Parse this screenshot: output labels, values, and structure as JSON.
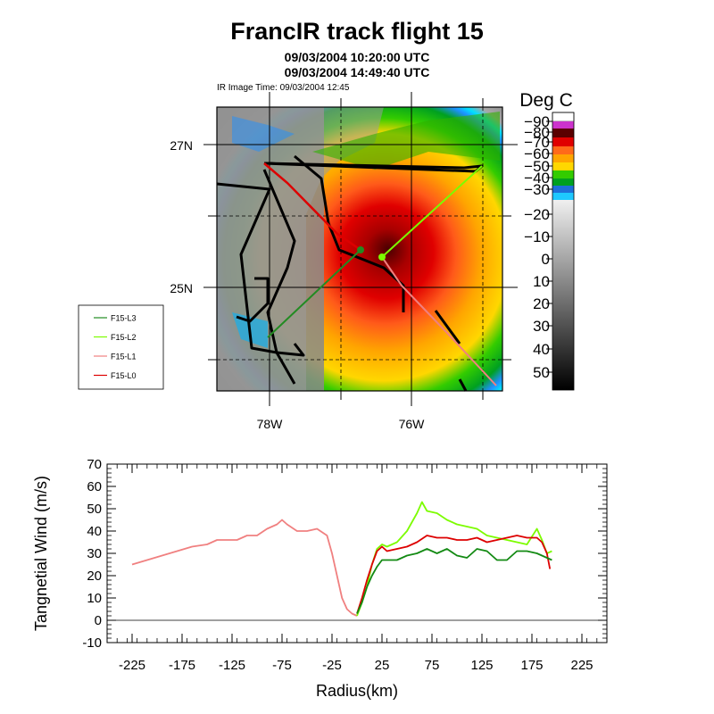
{
  "title": "FrancIR track flight 15",
  "time_start": "09/03/2004 10:20:00 UTC",
  "time_end": "09/03/2004 14:49:40 UTC",
  "ir_image_time": "IR Image Time: 09/03/2004 12:45",
  "map": {
    "lat_labels": [
      "27N",
      "25N"
    ],
    "lon_labels": [
      "78W",
      "76W"
    ]
  },
  "colorbar": {
    "title": "Deg C",
    "labels": [
      "-90",
      "-80",
      "-70",
      "-60",
      "-50",
      "-40",
      "-30",
      "-20",
      "-10",
      "0",
      "10",
      "20",
      "30",
      "40",
      "50"
    ]
  },
  "legend": {
    "entries": [
      {
        "label": "F15-L3",
        "color": "#228b22"
      },
      {
        "label": "F15-L2",
        "color": "#7cfc00"
      },
      {
        "label": "F15-L1",
        "color": "#f08080"
      },
      {
        "label": "F15-L0",
        "color": "#dd0000"
      }
    ]
  },
  "chart_data": {
    "type": "line",
    "xlabel": "Radius(km)",
    "ylabel": "Tangnetial Wind (m/s)",
    "xlim": [
      -250,
      250
    ],
    "ylim": [
      -10,
      70
    ],
    "xticks": [
      -225,
      -175,
      -125,
      -75,
      -25,
      25,
      75,
      125,
      175,
      225
    ],
    "yticks": [
      -10,
      0,
      10,
      20,
      30,
      40,
      50,
      60,
      70
    ],
    "series": [
      {
        "name": "F15-L1",
        "color": "#f08080",
        "x": [
          -225,
          -210,
          -195,
          -180,
          -165,
          -150,
          -140,
          -130,
          -120,
          -110,
          -100,
          -90,
          -80,
          -75,
          -70,
          -60,
          -50,
          -40,
          -30,
          -25,
          -20,
          -15,
          -10,
          -5,
          0
        ],
        "y": [
          25,
          27,
          29,
          31,
          33,
          34,
          36,
          36,
          36,
          38,
          38,
          41,
          43,
          45,
          43,
          40,
          40,
          41,
          38,
          30,
          20,
          10,
          5,
          3,
          2
        ]
      },
      {
        "name": "F15-L2",
        "color": "#7cfc00",
        "x": [
          0,
          5,
          10,
          15,
          20,
          25,
          30,
          40,
          50,
          60,
          65,
          70,
          80,
          90,
          100,
          110,
          120,
          130,
          140,
          150,
          160,
          170,
          180,
          185,
          190,
          195
        ],
        "y": [
          2,
          8,
          15,
          25,
          32,
          34,
          33,
          35,
          40,
          48,
          53,
          49,
          48,
          45,
          43,
          42,
          41,
          38,
          37,
          36,
          35,
          34,
          41,
          36,
          30,
          31
        ]
      },
      {
        "name": "F15-L0",
        "color": "#dd0000",
        "x": [
          0,
          5,
          10,
          15,
          20,
          25,
          30,
          40,
          50,
          60,
          70,
          80,
          90,
          100,
          110,
          120,
          130,
          140,
          150,
          160,
          170,
          180,
          185,
          190,
          193
        ],
        "y": [
          3,
          10,
          18,
          25,
          31,
          33,
          31,
          32,
          33,
          35,
          38,
          37,
          37,
          36,
          36,
          37,
          35,
          36,
          37,
          38,
          37,
          37,
          35,
          30,
          23
        ]
      },
      {
        "name": "F15-L3",
        "color": "#138a13",
        "x": [
          0,
          5,
          10,
          15,
          20,
          25,
          30,
          40,
          50,
          60,
          70,
          80,
          90,
          100,
          110,
          120,
          130,
          140,
          150,
          160,
          170,
          180,
          190,
          195
        ],
        "y": [
          3,
          8,
          15,
          20,
          24,
          27,
          27,
          27,
          29,
          30,
          32,
          30,
          32,
          29,
          28,
          32,
          31,
          27,
          27,
          31,
          31,
          30,
          28,
          27
        ]
      }
    ]
  }
}
